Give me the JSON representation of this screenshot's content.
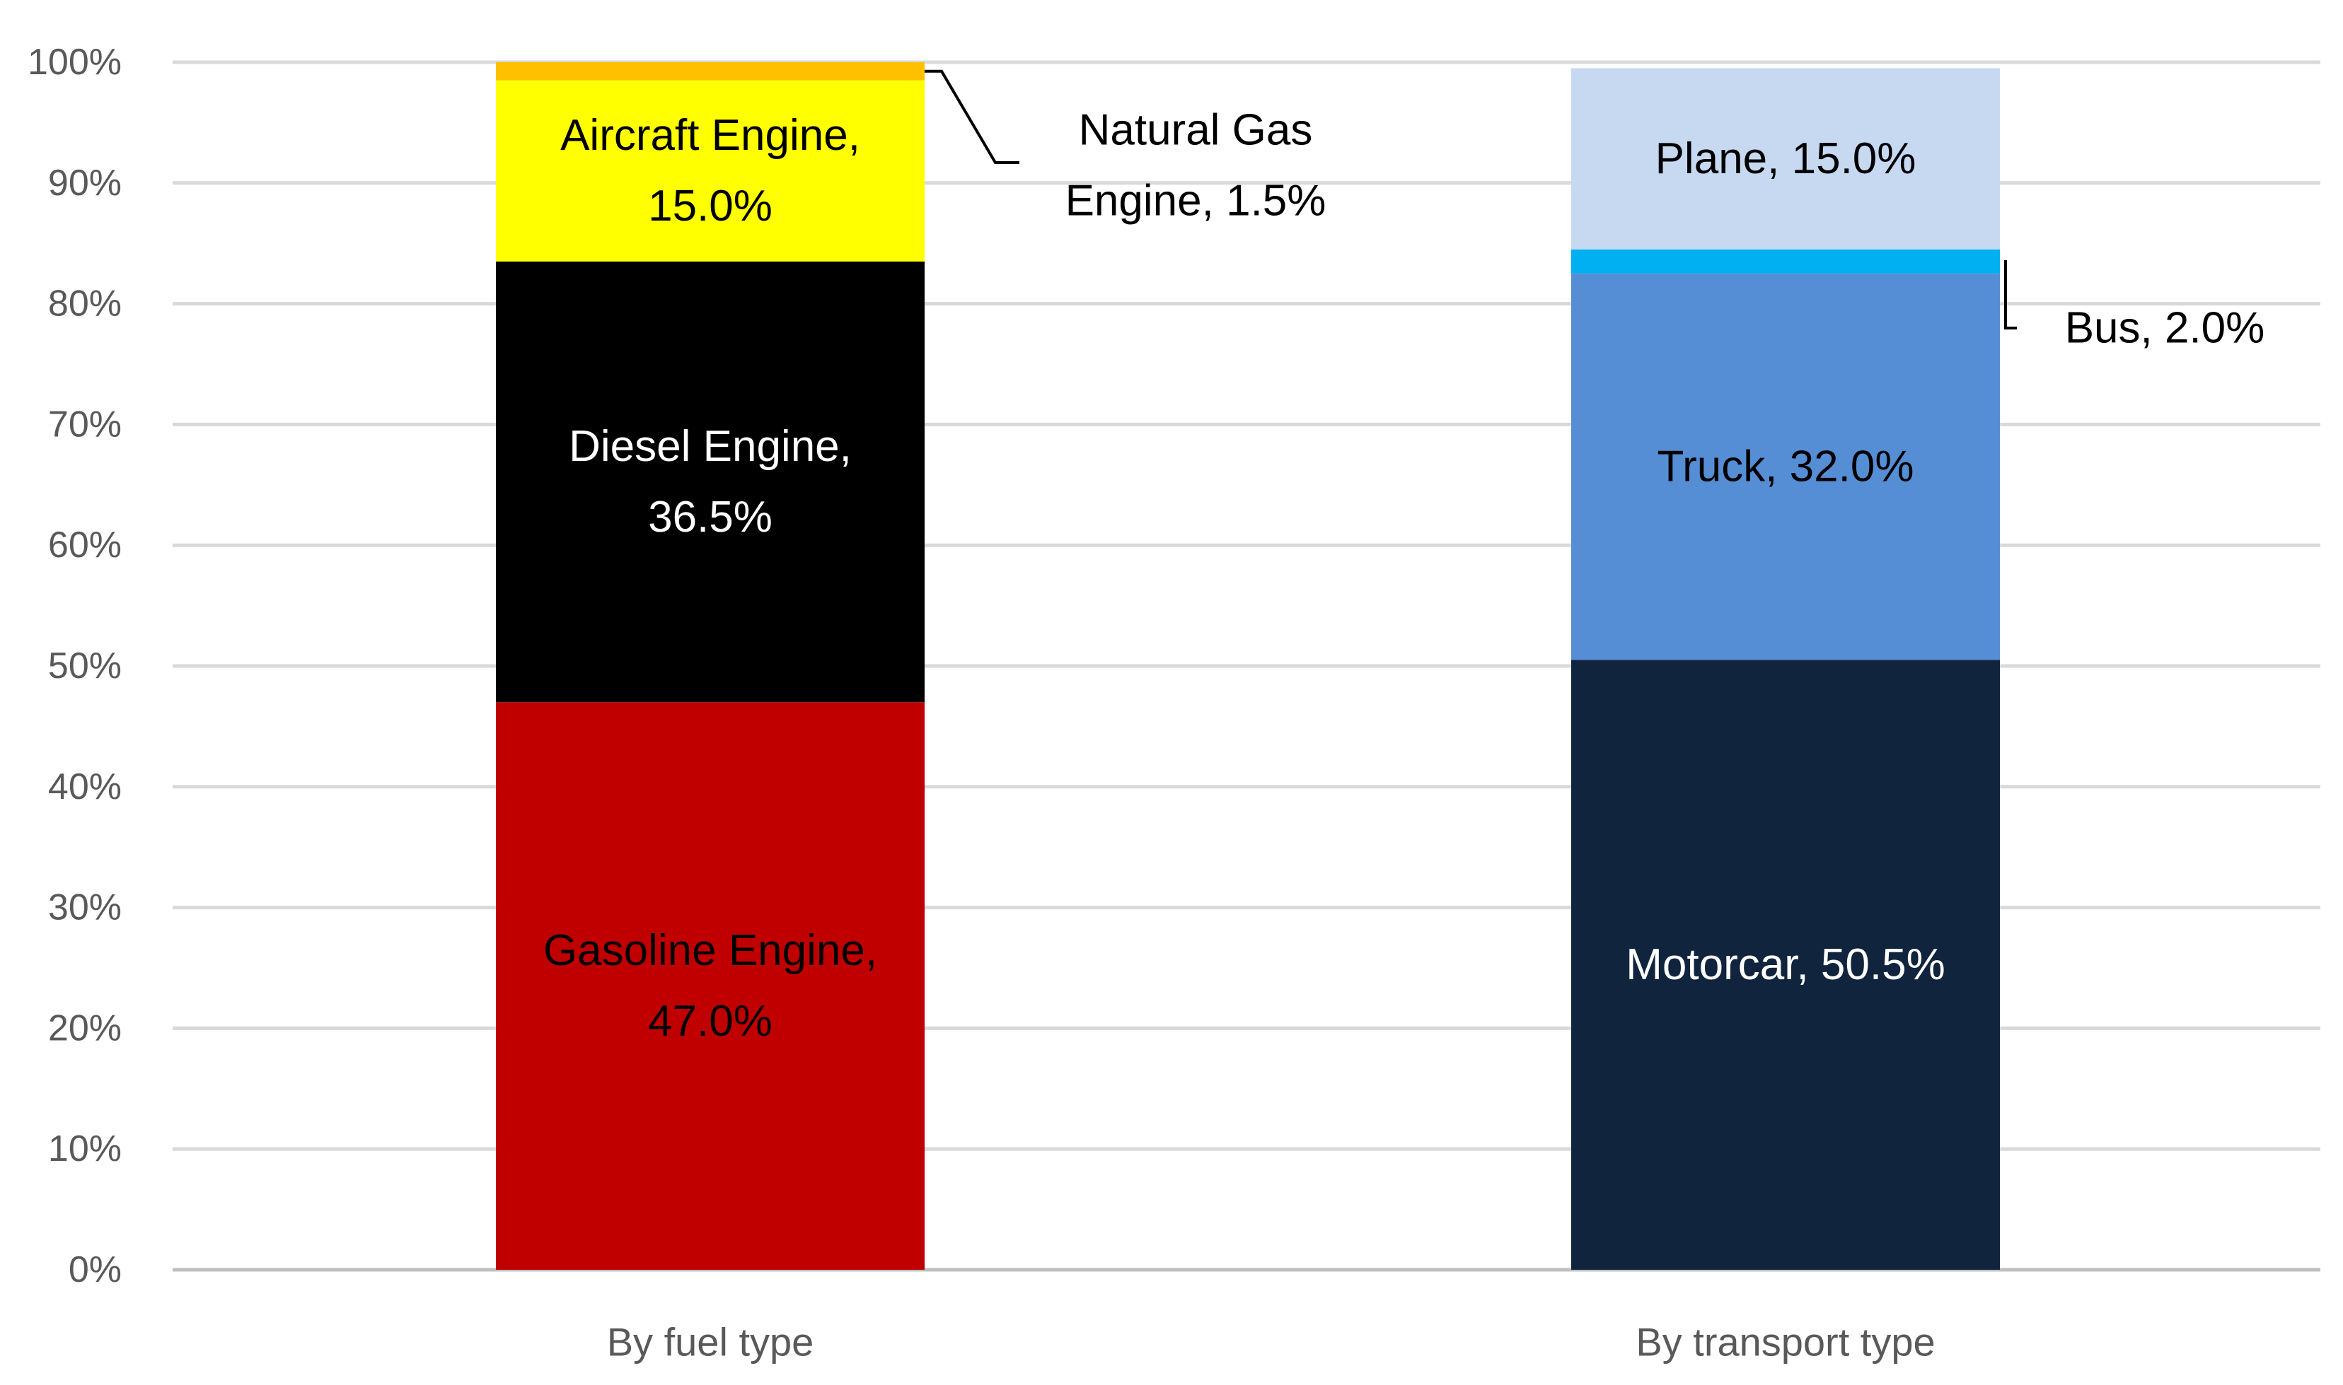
{
  "chart_data": {
    "type": "bar",
    "stacked": true,
    "categories": [
      "By fuel type",
      "By transport type"
    ],
    "ylim": [
      0,
      100
    ],
    "yticks": [
      0,
      10,
      20,
      30,
      40,
      50,
      60,
      70,
      80,
      90,
      100
    ],
    "ytick_labels": [
      "0%",
      "10%",
      "20%",
      "30%",
      "40%",
      "50%",
      "60%",
      "70%",
      "80%",
      "90%",
      "100%"
    ],
    "grid": true,
    "stacks": [
      {
        "category": "By fuel type",
        "segments": [
          {
            "value": 47.0,
            "color": "#c00000",
            "label": [
              "Gasoline Engine,",
              "47.0%"
            ],
            "label_color": "#000000",
            "position": "inside"
          },
          {
            "value": 36.5,
            "color": "#000000",
            "label": [
              "Diesel Engine,",
              "36.5%"
            ],
            "label_color": "#ffffff",
            "position": "inside"
          },
          {
            "value": 15.0,
            "color": "#ffff00",
            "label": [
              "Aircraft Engine,",
              "15.0%"
            ],
            "label_color": "#000000",
            "position": "inside"
          },
          {
            "value": 1.5,
            "color": "#ffc000",
            "label": [
              "Natural Gas",
              "Engine, 1.5%"
            ],
            "label_color": "#000000",
            "position": "outside"
          }
        ]
      },
      {
        "category": "By transport type",
        "segments": [
          {
            "value": 50.5,
            "color": "#10243e",
            "label": [
              "Motorcar, 50.5%"
            ],
            "label_color": "#ffffff",
            "position": "inside"
          },
          {
            "value": 32.0,
            "color": "#558ed5",
            "label": [
              "Truck, 32.0%"
            ],
            "label_color": "#000000",
            "position": "inside"
          },
          {
            "value": 2.0,
            "color": "#00b0f0",
            "label": [
              "Bus, 2.0%"
            ],
            "label_color": "#000000",
            "position": "outside"
          },
          {
            "value": 15.0,
            "color": "#c6d9f1",
            "label": [
              "Plane, 15.0%"
            ],
            "label_color": "#000000",
            "position": "inside"
          }
        ]
      }
    ]
  }
}
